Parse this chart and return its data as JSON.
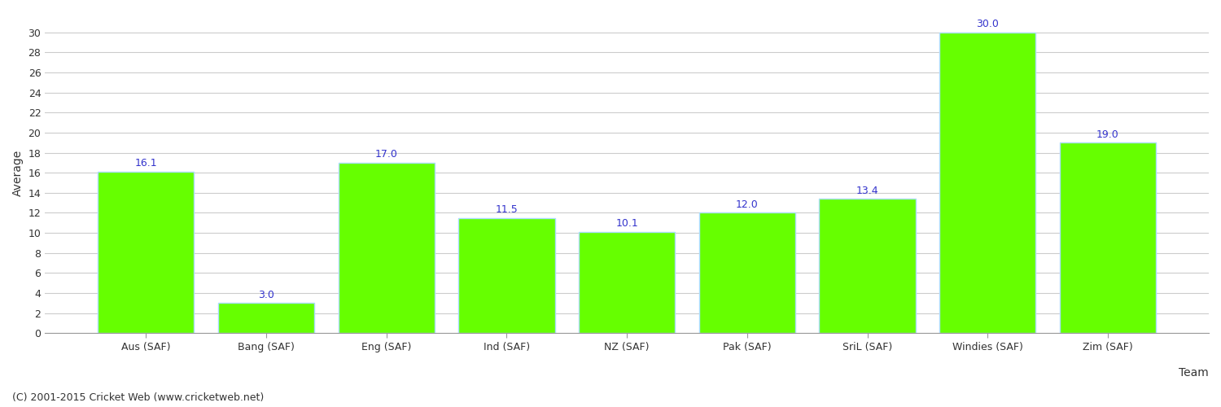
{
  "categories": [
    "Aus (SAF)",
    "Bang (SAF)",
    "Eng (SAF)",
    "Ind (SAF)",
    "NZ (SAF)",
    "Pak (SAF)",
    "SriL (SAF)",
    "Windies (SAF)",
    "Zim (SAF)"
  ],
  "values": [
    16.1,
    3.0,
    17.0,
    11.5,
    10.1,
    12.0,
    13.4,
    30.0,
    19.0
  ],
  "bar_color": "#66ff00",
  "bar_edge_color": "#aaddff",
  "label_color": "#3333cc",
  "xlabel": "Team",
  "ylabel": "Average",
  "ylim": [
    0,
    32
  ],
  "yticks": [
    0,
    2,
    4,
    6,
    8,
    10,
    12,
    14,
    16,
    18,
    20,
    22,
    24,
    26,
    28,
    30
  ],
  "background_color": "#ffffff",
  "grid_color": "#cccccc",
  "annotation_fontsize": 9,
  "axis_label_fontsize": 10,
  "tick_label_fontsize": 9,
  "footer_text": "(C) 2001-2015 Cricket Web (www.cricketweb.net)",
  "footer_fontsize": 9,
  "footer_color": "#333333"
}
